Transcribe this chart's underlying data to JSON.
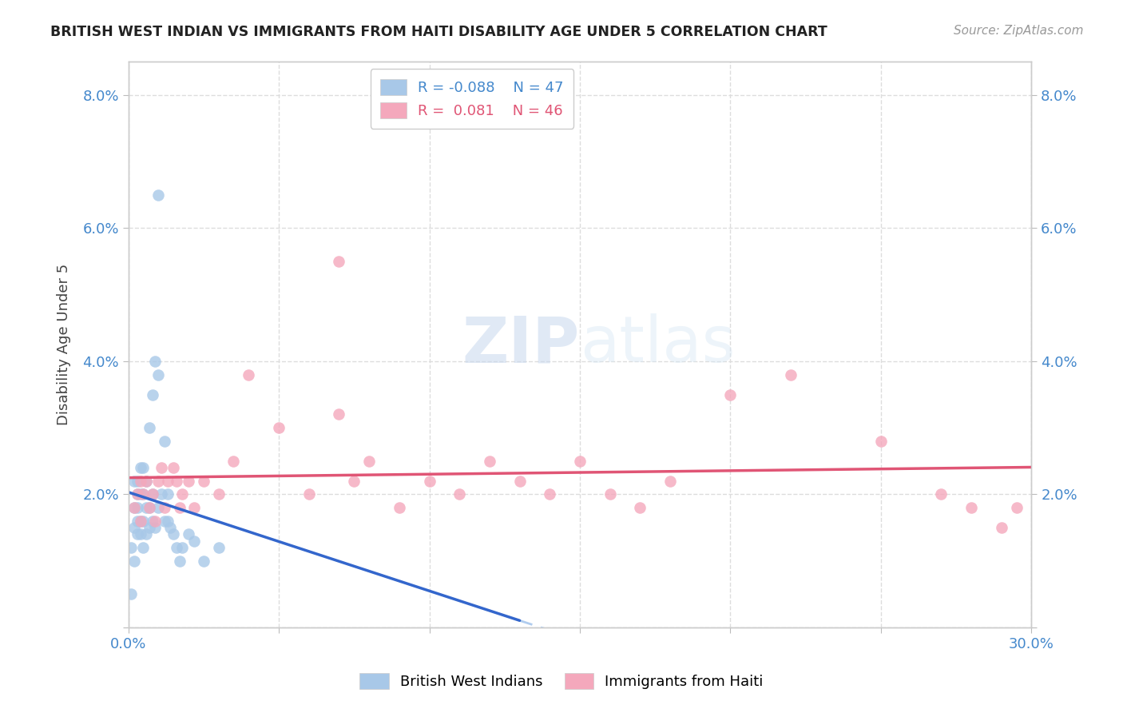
{
  "title": "BRITISH WEST INDIAN VS IMMIGRANTS FROM HAITI DISABILITY AGE UNDER 5 CORRELATION CHART",
  "source": "Source: ZipAtlas.com",
  "ylabel": "Disability Age Under 5",
  "xmin": 0.0,
  "xmax": 0.3,
  "ymin": 0.0,
  "ymax": 0.085,
  "yticks": [
    0.0,
    0.02,
    0.04,
    0.06,
    0.08
  ],
  "ytick_labels_left": [
    "",
    "2.0%",
    "4.0%",
    "6.0%",
    "8.0%"
  ],
  "ytick_labels_right": [
    "",
    "2.0%",
    "4.0%",
    "6.0%",
    "8.0%"
  ],
  "xticks": [
    0.0,
    0.05,
    0.1,
    0.15,
    0.2,
    0.25,
    0.3
  ],
  "xtick_labels": [
    "0.0%",
    "",
    "",
    "",
    "",
    "",
    "30.0%"
  ],
  "blue_R": -0.088,
  "blue_N": 47,
  "pink_R": 0.081,
  "pink_N": 46,
  "legend_label_blue": "British West Indians",
  "legend_label_pink": "Immigrants from Haiti",
  "blue_color": "#a8c8e8",
  "pink_color": "#f4a8bc",
  "blue_line_color": "#3366cc",
  "pink_line_color": "#e05575",
  "blue_dash_color": "#b0ccee",
  "watermark_zip": "ZIP",
  "watermark_atlas": "atlas",
  "blue_x": [
    0.001,
    0.001,
    0.002,
    0.002,
    0.002,
    0.002,
    0.003,
    0.003,
    0.003,
    0.003,
    0.003,
    0.004,
    0.004,
    0.004,
    0.004,
    0.005,
    0.005,
    0.005,
    0.005,
    0.006,
    0.006,
    0.006,
    0.007,
    0.007,
    0.007,
    0.008,
    0.008,
    0.008,
    0.009,
    0.009,
    0.01,
    0.01,
    0.011,
    0.012,
    0.012,
    0.013,
    0.013,
    0.014,
    0.015,
    0.016,
    0.017,
    0.018,
    0.02,
    0.022,
    0.025,
    0.03,
    0.01
  ],
  "blue_y": [
    0.005,
    0.012,
    0.01,
    0.015,
    0.018,
    0.022,
    0.014,
    0.016,
    0.018,
    0.02,
    0.022,
    0.014,
    0.016,
    0.02,
    0.024,
    0.012,
    0.016,
    0.02,
    0.024,
    0.014,
    0.018,
    0.022,
    0.015,
    0.018,
    0.03,
    0.016,
    0.02,
    0.035,
    0.015,
    0.04,
    0.018,
    0.038,
    0.02,
    0.016,
    0.028,
    0.016,
    0.02,
    0.015,
    0.014,
    0.012,
    0.01,
    0.012,
    0.014,
    0.013,
    0.01,
    0.012,
    0.065
  ],
  "pink_x": [
    0.002,
    0.003,
    0.004,
    0.004,
    0.005,
    0.006,
    0.007,
    0.008,
    0.009,
    0.01,
    0.011,
    0.012,
    0.013,
    0.015,
    0.016,
    0.017,
    0.018,
    0.02,
    0.022,
    0.025,
    0.03,
    0.035,
    0.04,
    0.05,
    0.06,
    0.07,
    0.075,
    0.08,
    0.09,
    0.1,
    0.11,
    0.12,
    0.13,
    0.14,
    0.15,
    0.16,
    0.17,
    0.18,
    0.2,
    0.22,
    0.25,
    0.27,
    0.28,
    0.29,
    0.295,
    0.07
  ],
  "pink_y": [
    0.018,
    0.02,
    0.016,
    0.022,
    0.02,
    0.022,
    0.018,
    0.02,
    0.016,
    0.022,
    0.024,
    0.018,
    0.022,
    0.024,
    0.022,
    0.018,
    0.02,
    0.022,
    0.018,
    0.022,
    0.02,
    0.025,
    0.038,
    0.03,
    0.02,
    0.032,
    0.022,
    0.025,
    0.018,
    0.022,
    0.02,
    0.025,
    0.022,
    0.02,
    0.025,
    0.02,
    0.018,
    0.022,
    0.035,
    0.038,
    0.028,
    0.02,
    0.018,
    0.015,
    0.018,
    0.055
  ]
}
